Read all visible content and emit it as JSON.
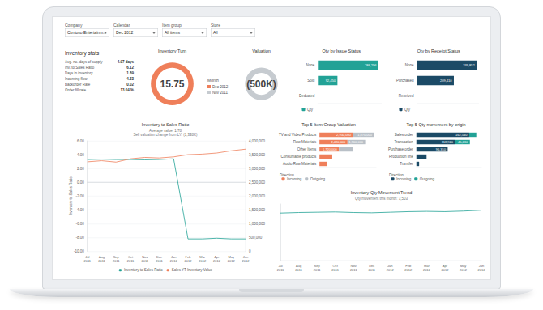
{
  "filters": [
    {
      "label": "Company",
      "value": "Contoso Entertainm..."
    },
    {
      "label": "Calendar",
      "value": "Dec 2012"
    },
    {
      "label": "Item group",
      "value": "All items"
    },
    {
      "label": "Store",
      "value": "All"
    }
  ],
  "stats": {
    "title": "Inventory stats",
    "rows": [
      [
        "Avg. no. days of supply",
        "4.97 days"
      ],
      [
        "Inv. to Sales Ratio",
        "6.12"
      ],
      [
        "Days in inventory",
        "1.89"
      ],
      [
        "Incoming flow",
        "4.33"
      ],
      [
        "Backorder Rate",
        "0.02"
      ],
      [
        "Order fill rate",
        "13.04 %"
      ]
    ]
  },
  "chart_data": [
    {
      "type": "gauge",
      "title": "Inventory Turn",
      "value": 15.75,
      "color": "#ef7f5a",
      "legend_title": "Month",
      "legend_items": [
        {
          "name": "Dec 2012",
          "color": "#ef7f5a"
        },
        {
          "name": "Nov 2011",
          "color": "#c6cbd0"
        }
      ]
    },
    {
      "type": "gauge",
      "title": "Valuation",
      "value": -500000,
      "value_label": "(500K)",
      "color": "#c6cbd0"
    },
    {
      "type": "bar",
      "title": "Qty by Issue Status",
      "orientation": "horizontal",
      "categories": [
        "None",
        "Sold",
        "Deducted"
      ],
      "series": [
        {
          "name": "Qty",
          "color": "#22a296",
          "values": [
            286296,
            92450,
            null
          ],
          "value_labels": [
            "286,296",
            "92,450",
            null
          ]
        }
      ],
      "xlim": [
        0,
        300000
      ],
      "tick_labels": "y",
      "data_labels": true,
      "legend": "bottom"
    },
    {
      "type": "bar",
      "title": "Qty by Receipt Status",
      "orientation": "horizontal",
      "categories": [
        "None",
        "Purchased",
        "Received"
      ],
      "series": [
        {
          "name": "Qty",
          "color": "#1b4a66",
          "values": [
            339852,
            209410,
            null
          ],
          "value_labels": [
            "339,852",
            "209,410",
            null
          ]
        }
      ],
      "xlim": [
        0,
        350000
      ],
      "tick_labels": "y",
      "data_labels": true,
      "legend": "bottom"
    },
    {
      "type": "line",
      "title": "Inventory to Sales Ratio",
      "subtitle": [
        "Average value: 1.78",
        "Sell valuation change from LY: (1,338K)"
      ],
      "y_label": "Inventory to Sales Ratio",
      "categories": [
        "Jul 2011",
        "Aug 2011",
        "Sep 2011",
        "Oct 2011",
        "Nov 2011",
        "Dec 2011",
        "Jan 2012",
        "Feb 2012",
        "Mar 2012",
        "Apr 2012",
        "May 2012",
        "Jun 2012"
      ],
      "series": [
        {
          "name": "Inventory to Sales Ratio",
          "color": "#22a296",
          "values": [
            3.3,
            3.35,
            3.3,
            3.3,
            3.25,
            3.3,
            3.4,
            -8.2,
            -8.2,
            -8.1,
            -8.2,
            -8.2
          ]
        },
        {
          "name": "Sales YT Inventory Value",
          "color": "#ef7f5a",
          "axis": "y2",
          "values": [
            3240000,
            3280000,
            3230000,
            3350000,
            3400000,
            3380000,
            3420000,
            3500000,
            3520000,
            3560000,
            3640000,
            3700000
          ]
        }
      ],
      "ylim": [
        -10,
        6
      ],
      "yticks": [
        {
          "value": -10,
          "label": "-10.00"
        },
        {
          "value": -8,
          "label": "-8.00"
        },
        {
          "value": -6,
          "label": "-6.00"
        },
        {
          "value": -4,
          "label": "-4.00"
        },
        {
          "value": -2,
          "label": "-2.00"
        },
        {
          "value": 0,
          "label": "0.00"
        },
        {
          "value": 2,
          "label": "2.00"
        },
        {
          "value": 4,
          "label": "4.00"
        },
        {
          "value": 6,
          "label": "6.00"
        }
      ],
      "y2lim": [
        0,
        4000000
      ],
      "y2ticks": [
        0,
        {
          "value": 500000,
          "label": "500,000"
        },
        {
          "value": 1000000,
          "label": "1,000,000"
        },
        {
          "value": 1500000,
          "label": "1,500,000"
        },
        {
          "value": 2000000,
          "label": "2,000,000"
        },
        {
          "value": 2500000,
          "label": "2,500,000"
        },
        {
          "value": 3000000,
          "label": "3,000,000"
        },
        {
          "value": 3500000,
          "label": "3,500,000"
        },
        {
          "value": 4000000,
          "label": "4,000,000"
        }
      ],
      "grid": true,
      "legend": "bottom"
    },
    {
      "type": "bar",
      "title": "Top 5 Item Group Valuation",
      "orientation": "horizontal",
      "stacked": true,
      "categories": [
        "TV and Video Products",
        "Raw Materials",
        "Other Items",
        "Consumable products",
        "Audio Raw Materials"
      ],
      "series": [
        {
          "name": "Incoming",
          "color": "#ef7f5a",
          "values": [
            2950000,
            2480000,
            1720000,
            1130000,
            640000
          ],
          "value_labels": [
            "2,950,000",
            "2,480,000",
            "1,720,000",
            null,
            null
          ]
        },
        {
          "name": "Outgoing",
          "color": "#b9c0c7",
          "values": [
            1870000,
            1560000,
            1240000,
            null,
            null
          ],
          "value_labels": [
            "1,870,000",
            "1,560,000",
            null,
            null,
            null
          ]
        }
      ],
      "xlim": [
        0,
        5000000
      ],
      "tick_labels": "y",
      "data_labels": true,
      "legend": "bottom",
      "legend_title": "Direction"
    },
    {
      "type": "bar",
      "title": "Top 5 Qty movement by origin",
      "orientation": "horizontal",
      "stacked": true,
      "categories": [
        "Sales order",
        "Transaction",
        "Purchase order",
        "Production line",
        "Transfer"
      ],
      "series": [
        {
          "name": "Incoming",
          "color": "#1b4a66",
          "values": [
            162540,
            118920,
            96310,
            31250,
            8400
          ],
          "value_labels": [
            "162,540",
            "118,920",
            "96,310",
            null,
            null
          ]
        },
        {
          "name": "Outgoing",
          "color": "#22a296",
          "values": [
            21780,
            45630,
            null,
            null,
            null
          ],
          "value_labels": [
            null,
            "45,630",
            null,
            null,
            null
          ]
        }
      ],
      "xlim": [
        0,
        200000
      ],
      "tick_labels": "y",
      "data_labels": true,
      "legend": "bottom",
      "legend_title": "Direction"
    },
    {
      "type": "line",
      "title": "Inventory Qty Movement Trend",
      "subtitle": [
        "Qty movement this month: 3,503"
      ],
      "categories": [
        "Jul 2011",
        "Aug 2011",
        "Sep 2011",
        "Oct 2011",
        "Nov 2011",
        "Dec 2011",
        "Jan 2012",
        "Feb 2012",
        "Mar 2012",
        "Apr 2012",
        "May 2012",
        "Jun 2012"
      ],
      "series": [
        {
          "color": "#22a296",
          "values": [
            8400,
            8500,
            8550,
            8600,
            8500,
            8450,
            8550,
            8650,
            8700,
            8650,
            8750,
            8900
          ]
        }
      ],
      "ylim": [
        0,
        10000
      ],
      "tick_labels": "x"
    }
  ]
}
